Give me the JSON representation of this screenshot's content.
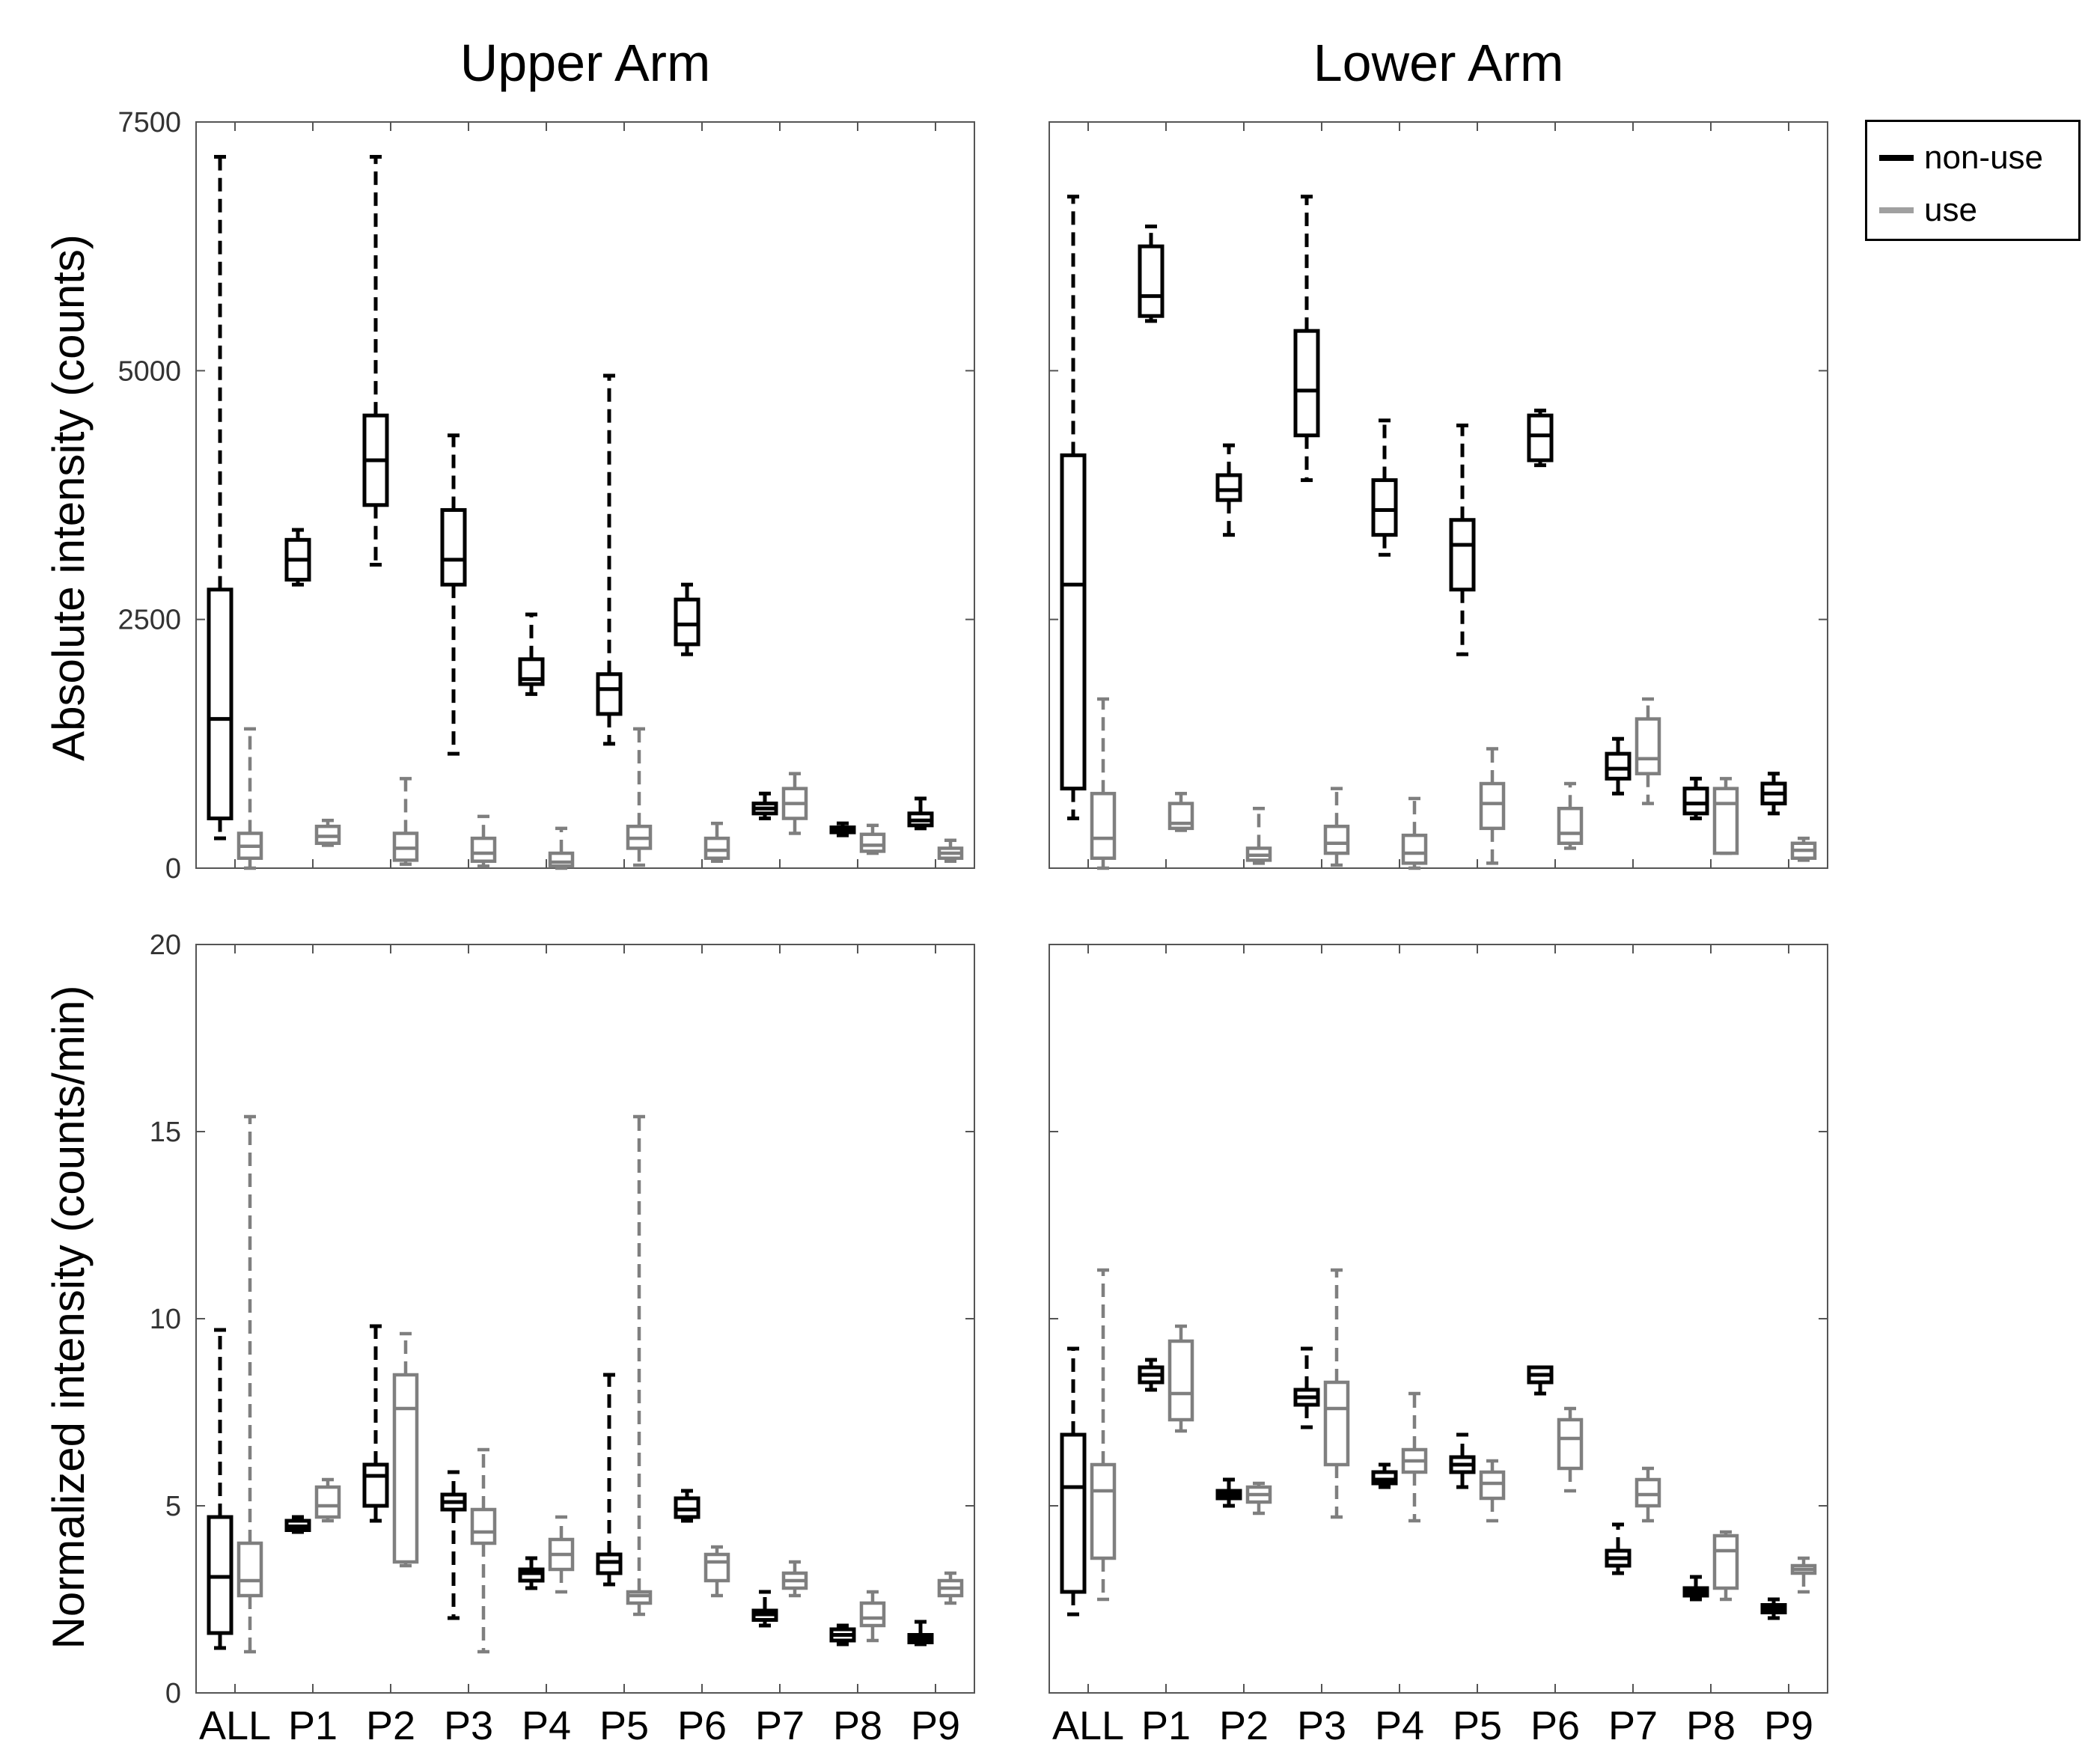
{
  "colors": {
    "non_use": "#000000",
    "use": "#7f7f7f",
    "legend_use": "#a0a0a0",
    "axis": "#555555"
  },
  "legend": [
    {
      "label": "non-use",
      "series": "non-use"
    },
    {
      "label": "use",
      "series": "use"
    }
  ],
  "ylabels": {
    "top": "Absolute intensity (counts)",
    "bottom": "Normalized intensity (counts/min)"
  },
  "chart_data": [
    {
      "id": "upper-abs",
      "type": "box",
      "title": "Upper Arm",
      "ylabel": "Absolute intensity (counts)",
      "xlabel": "",
      "ylim": [
        0,
        7500
      ],
      "yticks": [
        0,
        2500,
        5000,
        7500
      ],
      "categories": [
        "ALL",
        "P1",
        "P2",
        "P3",
        "P4",
        "P5",
        "P6",
        "P7",
        "P8",
        "P9"
      ],
      "series": [
        {
          "name": "non-use",
          "boxes": [
            {
              "min": 300,
              "q1": 500,
              "med": 1500,
              "q3": 2800,
              "max": 7150
            },
            {
              "min": 2850,
              "q1": 2900,
              "med": 3100,
              "q3": 3300,
              "max": 3400
            },
            {
              "min": 3050,
              "q1": 3650,
              "med": 4100,
              "q3": 4550,
              "max": 7150
            },
            {
              "min": 1150,
              "q1": 2850,
              "med": 3100,
              "q3": 3600,
              "max": 4350
            },
            {
              "min": 1750,
              "q1": 1850,
              "med": 1900,
              "q3": 2100,
              "max": 2550
            },
            {
              "min": 1250,
              "q1": 1550,
              "med": 1800,
              "q3": 1950,
              "max": 4950
            },
            {
              "min": 2150,
              "q1": 2250,
              "med": 2450,
              "q3": 2700,
              "max": 2850
            },
            {
              "min": 500,
              "q1": 550,
              "med": 600,
              "q3": 650,
              "max": 750
            },
            {
              "min": 330,
              "q1": 360,
              "med": 380,
              "q3": 410,
              "max": 450
            },
            {
              "min": 400,
              "q1": 430,
              "med": 480,
              "q3": 550,
              "max": 700
            }
          ]
        },
        {
          "name": "use",
          "boxes": [
            {
              "min": 0,
              "q1": 100,
              "med": 220,
              "q3": 350,
              "max": 1400
            },
            {
              "min": 230,
              "q1": 250,
              "med": 320,
              "q3": 420,
              "max": 480
            },
            {
              "min": 40,
              "q1": 80,
              "med": 200,
              "q3": 350,
              "max": 900
            },
            {
              "min": 20,
              "q1": 70,
              "med": 150,
              "q3": 300,
              "max": 520
            },
            {
              "min": 0,
              "q1": 20,
              "med": 60,
              "q3": 150,
              "max": 400
            },
            {
              "min": 30,
              "q1": 200,
              "med": 300,
              "q3": 420,
              "max": 1400
            },
            {
              "min": 70,
              "q1": 100,
              "med": 180,
              "q3": 300,
              "max": 450
            },
            {
              "min": 350,
              "q1": 500,
              "med": 650,
              "q3": 800,
              "max": 950
            },
            {
              "min": 150,
              "q1": 170,
              "med": 230,
              "q3": 340,
              "max": 430
            },
            {
              "min": 70,
              "q1": 100,
              "med": 150,
              "q3": 200,
              "max": 280
            }
          ]
        }
      ]
    },
    {
      "id": "lower-abs",
      "type": "box",
      "title": "Lower Arm",
      "ylabel": "",
      "xlabel": "",
      "ylim": [
        0,
        7500
      ],
      "yticks": [
        0,
        2500,
        5000,
        7500
      ],
      "categories": [
        "ALL",
        "P1",
        "P2",
        "P3",
        "P4",
        "P5",
        "P6",
        "P7",
        "P8",
        "P9"
      ],
      "series": [
        {
          "name": "non-use",
          "boxes": [
            {
              "min": 500,
              "q1": 800,
              "med": 2850,
              "q3": 4150,
              "max": 6750
            },
            {
              "min": 5500,
              "q1": 5550,
              "med": 5750,
              "q3": 6250,
              "max": 6450
            },
            {
              "min": 3350,
              "q1": 3700,
              "med": 3800,
              "q3": 3950,
              "max": 4250
            },
            {
              "min": 3900,
              "q1": 4350,
              "med": 4800,
              "q3": 5400,
              "max": 6750
            },
            {
              "min": 3150,
              "q1": 3350,
              "med": 3600,
              "q3": 3900,
              "max": 4500
            },
            {
              "min": 2150,
              "q1": 2800,
              "med": 3250,
              "q3": 3500,
              "max": 4450
            },
            {
              "min": 4050,
              "q1": 4100,
              "med": 4350,
              "q3": 4550,
              "max": 4600
            },
            {
              "min": 750,
              "q1": 900,
              "med": 1000,
              "q3": 1150,
              "max": 1300
            },
            {
              "min": 500,
              "q1": 550,
              "med": 650,
              "q3": 800,
              "max": 900
            },
            {
              "min": 550,
              "q1": 650,
              "med": 750,
              "q3": 850,
              "max": 950
            }
          ]
        },
        {
          "name": "use",
          "boxes": [
            {
              "min": 0,
              "q1": 100,
              "med": 300,
              "q3": 750,
              "max": 1700
            },
            {
              "min": 380,
              "q1": 400,
              "med": 450,
              "q3": 650,
              "max": 750
            },
            {
              "min": 50,
              "q1": 80,
              "med": 130,
              "q3": 200,
              "max": 600
            },
            {
              "min": 30,
              "q1": 150,
              "med": 250,
              "q3": 420,
              "max": 800
            },
            {
              "min": 0,
              "q1": 50,
              "med": 150,
              "q3": 330,
              "max": 700
            },
            {
              "min": 50,
              "q1": 400,
              "med": 650,
              "q3": 850,
              "max": 1200
            },
            {
              "min": 200,
              "q1": 250,
              "med": 350,
              "q3": 600,
              "max": 850
            },
            {
              "min": 650,
              "q1": 950,
              "med": 1100,
              "q3": 1500,
              "max": 1700
            },
            {
              "min": 150,
              "q1": 150,
              "med": 650,
              "q3": 800,
              "max": 900
            },
            {
              "min": 80,
              "q1": 100,
              "med": 180,
              "q3": 250,
              "max": 300
            }
          ]
        }
      ]
    },
    {
      "id": "upper-norm",
      "type": "box",
      "title": "",
      "ylabel": "Normalized intensity (counts/min)",
      "xlabel": "",
      "ylim": [
        0,
        20
      ],
      "yticks": [
        0,
        5,
        10,
        15,
        20
      ],
      "categories": [
        "ALL",
        "P1",
        "P2",
        "P3",
        "P4",
        "P5",
        "P6",
        "P7",
        "P8",
        "P9"
      ],
      "series": [
        {
          "name": "non-use",
          "boxes": [
            {
              "min": 1.2,
              "q1": 1.6,
              "med": 3.1,
              "q3": 4.7,
              "max": 9.7
            },
            {
              "min": 4.3,
              "q1": 4.35,
              "med": 4.45,
              "q3": 4.6,
              "max": 4.7
            },
            {
              "min": 4.6,
              "q1": 5.0,
              "med": 5.8,
              "q3": 6.1,
              "max": 9.8
            },
            {
              "min": 2.0,
              "q1": 4.9,
              "med": 5.1,
              "q3": 5.3,
              "max": 5.9
            },
            {
              "min": 2.8,
              "q1": 3.0,
              "med": 3.2,
              "q3": 3.3,
              "max": 3.6
            },
            {
              "min": 2.9,
              "q1": 3.2,
              "med": 3.5,
              "q3": 3.7,
              "max": 8.5
            },
            {
              "min": 4.6,
              "q1": 4.7,
              "med": 4.9,
              "q3": 5.2,
              "max": 5.4
            },
            {
              "min": 1.8,
              "q1": 1.95,
              "med": 2.1,
              "q3": 2.2,
              "max": 2.7
            },
            {
              "min": 1.3,
              "q1": 1.4,
              "med": 1.55,
              "q3": 1.7,
              "max": 1.8
            },
            {
              "min": 1.3,
              "q1": 1.35,
              "med": 1.45,
              "q3": 1.55,
              "max": 1.9
            }
          ]
        },
        {
          "name": "use",
          "boxes": [
            {
              "min": 1.1,
              "q1": 2.6,
              "med": 3.0,
              "q3": 4.0,
              "max": 15.4
            },
            {
              "min": 4.6,
              "q1": 4.7,
              "med": 5.0,
              "q3": 5.5,
              "max": 5.7
            },
            {
              "min": 3.4,
              "q1": 3.5,
              "med": 7.6,
              "q3": 8.5,
              "max": 9.6
            },
            {
              "min": 1.1,
              "q1": 4.0,
              "med": 4.3,
              "q3": 4.9,
              "max": 6.5
            },
            {
              "min": 2.7,
              "q1": 3.3,
              "med": 3.7,
              "q3": 4.1,
              "max": 4.7
            },
            {
              "min": 2.1,
              "q1": 2.4,
              "med": 2.6,
              "q3": 2.7,
              "max": 15.4
            },
            {
              "min": 2.6,
              "q1": 3.0,
              "med": 3.5,
              "q3": 3.7,
              "max": 3.9
            },
            {
              "min": 2.6,
              "q1": 2.8,
              "med": 3.0,
              "q3": 3.2,
              "max": 3.5
            },
            {
              "min": 1.4,
              "q1": 1.8,
              "med": 2.0,
              "q3": 2.4,
              "max": 2.7
            },
            {
              "min": 2.4,
              "q1": 2.6,
              "med": 2.8,
              "q3": 3.0,
              "max": 3.2
            }
          ]
        }
      ]
    },
    {
      "id": "lower-norm",
      "type": "box",
      "title": "",
      "ylabel": "",
      "xlabel": "",
      "ylim": [
        0,
        20
      ],
      "yticks": [
        0,
        5,
        10,
        15,
        20
      ],
      "categories": [
        "ALL",
        "P1",
        "P2",
        "P3",
        "P4",
        "P5",
        "P6",
        "P7",
        "P8",
        "P9"
      ],
      "series": [
        {
          "name": "non-use",
          "boxes": [
            {
              "min": 2.1,
              "q1": 2.7,
              "med": 5.5,
              "q3": 6.9,
              "max": 9.2
            },
            {
              "min": 8.1,
              "q1": 8.3,
              "med": 8.5,
              "q3": 8.7,
              "max": 8.9
            },
            {
              "min": 5.0,
              "q1": 5.2,
              "med": 5.3,
              "q3": 5.4,
              "max": 5.7
            },
            {
              "min": 7.1,
              "q1": 7.7,
              "med": 7.9,
              "q3": 8.1,
              "max": 9.2
            },
            {
              "min": 5.5,
              "q1": 5.6,
              "med": 5.7,
              "q3": 5.9,
              "max": 6.1
            },
            {
              "min": 5.5,
              "q1": 5.9,
              "med": 6.1,
              "q3": 6.3,
              "max": 6.9
            },
            {
              "min": 8.0,
              "q1": 8.3,
              "med": 8.5,
              "q3": 8.7,
              "max": 8.7
            },
            {
              "min": 3.2,
              "q1": 3.4,
              "med": 3.6,
              "q3": 3.8,
              "max": 4.5
            },
            {
              "min": 2.5,
              "q1": 2.6,
              "med": 2.7,
              "q3": 2.8,
              "max": 3.1
            },
            {
              "min": 2.0,
              "q1": 2.15,
              "med": 2.25,
              "q3": 2.35,
              "max": 2.5
            }
          ]
        },
        {
          "name": "use",
          "boxes": [
            {
              "min": 2.5,
              "q1": 3.6,
              "med": 5.4,
              "q3": 6.1,
              "max": 11.3
            },
            {
              "min": 7.0,
              "q1": 7.3,
              "med": 8.0,
              "q3": 9.4,
              "max": 9.8
            },
            {
              "min": 4.8,
              "q1": 5.1,
              "med": 5.3,
              "q3": 5.5,
              "max": 5.6
            },
            {
              "min": 4.7,
              "q1": 6.1,
              "med": 7.6,
              "q3": 8.3,
              "max": 11.3
            },
            {
              "min": 4.6,
              "q1": 5.9,
              "med": 6.2,
              "q3": 6.5,
              "max": 8.0
            },
            {
              "min": 4.6,
              "q1": 5.2,
              "med": 5.6,
              "q3": 5.9,
              "max": 6.2
            },
            {
              "min": 5.4,
              "q1": 6.0,
              "med": 6.8,
              "q3": 7.3,
              "max": 7.6
            },
            {
              "min": 4.6,
              "q1": 5.0,
              "med": 5.3,
              "q3": 5.7,
              "max": 6.0
            },
            {
              "min": 2.5,
              "q1": 2.8,
              "med": 3.8,
              "q3": 4.2,
              "max": 4.3
            },
            {
              "min": 2.7,
              "q1": 3.2,
              "med": 3.3,
              "q3": 3.4,
              "max": 3.6
            }
          ]
        }
      ]
    }
  ]
}
